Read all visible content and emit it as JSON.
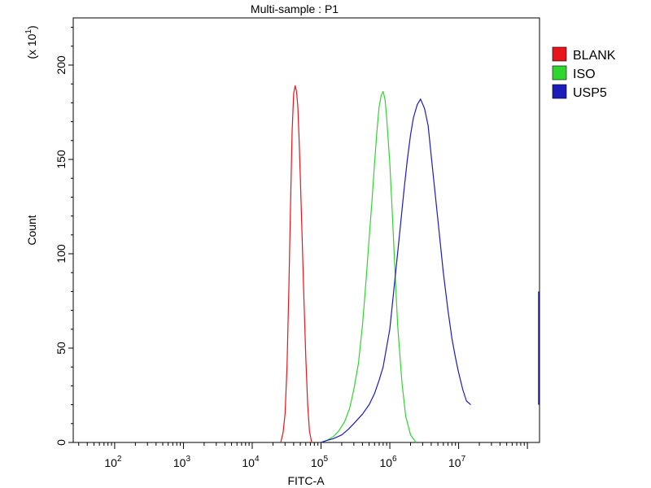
{
  "chart_data": {
    "type": "line",
    "title": "Multi-sample : P1",
    "xlabel": "FITC-A",
    "ylabel": "Count",
    "y_multiplier": "(x 10",
    "y_multiplier_exp": "1",
    "y_multiplier_close": ")",
    "x_scale": "log",
    "xlim": [
      25,
      150000000
    ],
    "ylim": [
      0,
      225
    ],
    "x_ticks": [
      {
        "value": 100,
        "base": "10",
        "exp": "2"
      },
      {
        "value": 1000,
        "base": "10",
        "exp": "3"
      },
      {
        "value": 10000,
        "base": "10",
        "exp": "4"
      },
      {
        "value": 100000,
        "base": "10",
        "exp": "5"
      },
      {
        "value": 1000000,
        "base": "10",
        "exp": "6"
      },
      {
        "value": 10000000,
        "base": "10",
        "exp": "7"
      }
    ],
    "y_ticks": [
      {
        "value": 0,
        "label": "0"
      },
      {
        "value": 50,
        "label": "50"
      },
      {
        "value": 100,
        "label": "100"
      },
      {
        "value": 150,
        "label": "150"
      },
      {
        "value": 200,
        "label": "200"
      }
    ],
    "legend_position": "right",
    "series": [
      {
        "name": "BLANK",
        "color": "#e8151a",
        "x": [
          26000,
          28000,
          30000,
          32000,
          34000,
          36000,
          38000,
          40000,
          42000,
          44000,
          46000,
          48000,
          50000,
          53000,
          56000,
          60000,
          64000,
          68000,
          73000
        ],
        "y": [
          0,
          5,
          15,
          40,
          80,
          125,
          165,
          185,
          189,
          186,
          178,
          160,
          140,
          110,
          80,
          45,
          20,
          6,
          0
        ]
      },
      {
        "name": "ISO",
        "color": "#2fd62f",
        "x": [
          100000,
          120000,
          150000,
          180000,
          220000,
          260000,
          300000,
          350000,
          400000,
          450000,
          500000,
          550000,
          600000,
          650000,
          700000,
          750000,
          800000,
          850000,
          900000,
          1000000,
          1100000,
          1200000,
          1300000,
          1500000,
          1700000,
          2000000,
          2400000
        ],
        "y": [
          0,
          1,
          3,
          6,
          11,
          18,
          28,
          42,
          62,
          85,
          108,
          128,
          148,
          165,
          178,
          184,
          186,
          182,
          172,
          148,
          118,
          88,
          62,
          32,
          14,
          4,
          0
        ]
      },
      {
        "name": "USP5",
        "color": "#1c1cb8",
        "x": [
          100000,
          120000,
          150000,
          200000,
          250000,
          300000,
          400000,
          500000,
          600000,
          700000,
          800000,
          1000000,
          1200000,
          1400000,
          1600000,
          1800000,
          2000000,
          2200000,
          2500000,
          2800000,
          3200000,
          3600000,
          4000000,
          5000000,
          6000000,
          7000000,
          8000000,
          9000000,
          10000000,
          11500000,
          13000000,
          15000000
        ],
        "y": [
          0,
          1,
          2,
          4,
          7,
          10,
          15,
          20,
          26,
          33,
          40,
          60,
          88,
          112,
          133,
          150,
          163,
          172,
          179,
          182,
          177,
          168,
          152,
          118,
          90,
          70,
          55,
          45,
          37,
          28,
          22,
          20
        ]
      }
    ]
  }
}
